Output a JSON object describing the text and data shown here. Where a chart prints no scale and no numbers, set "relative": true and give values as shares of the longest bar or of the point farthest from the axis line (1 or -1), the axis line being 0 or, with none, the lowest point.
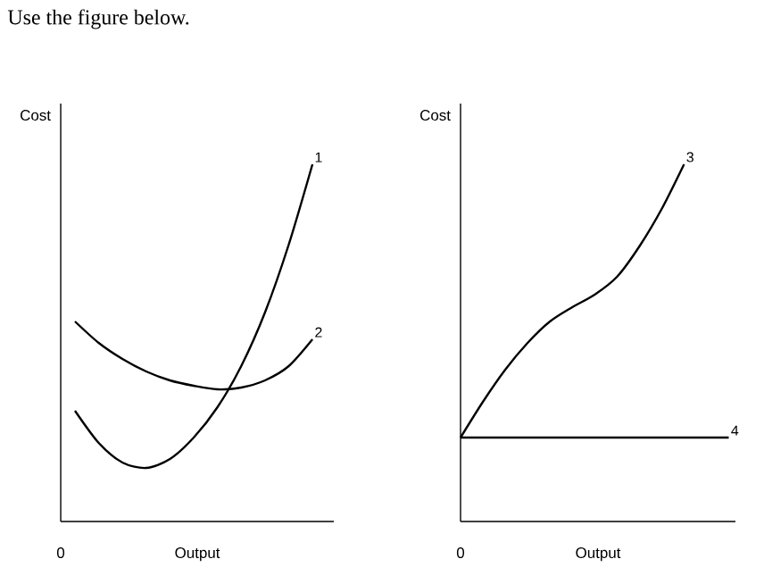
{
  "chart_data": [
    {
      "type": "line",
      "title": "Use the figure below.",
      "xlabel": "Output",
      "ylabel": "Cost",
      "annotations": [
        "0"
      ],
      "relative": true,
      "categories": [
        null,
        null,
        null,
        null,
        null,
        null,
        null,
        null,
        null,
        null,
        null
      ],
      "series": [
        {
          "name": "1",
          "color": "#000000",
          "values": [
            0.31,
            0.22,
            0.165,
            0.15,
            0.175,
            0.235,
            0.32,
            0.435,
            0.585,
            0.775,
            1
          ]
        },
        {
          "name": "2",
          "color": "#000000",
          "values": [
            0.56,
            0.5,
            0.455,
            0.42,
            0.395,
            0.38,
            0.37,
            0.375,
            0.395,
            0.435,
            0.51
          ]
        }
      ]
    },
    {
      "type": "line",
      "xlabel": "Output",
      "ylabel": "Cost",
      "annotations": [
        "0"
      ],
      "relative": true,
      "categories": [
        null,
        null,
        null,
        null,
        null,
        null,
        null,
        null,
        null,
        null,
        null,
        null,
        null
      ],
      "series": [
        {
          "name": "3",
          "color": "#000000",
          "values": [
            0.235,
            0.335,
            0.425,
            0.5,
            0.56,
            0.6,
            0.635,
            0.685,
            0.77,
            0.875,
            1,
            null,
            null
          ]
        },
        {
          "name": "4",
          "color": "#000000",
          "values": [
            0.235,
            0.235,
            0.235,
            0.235,
            0.235,
            0.235,
            0.235,
            0.235,
            0.235,
            0.235,
            0.235,
            0.235,
            0.235
          ]
        }
      ]
    }
  ]
}
